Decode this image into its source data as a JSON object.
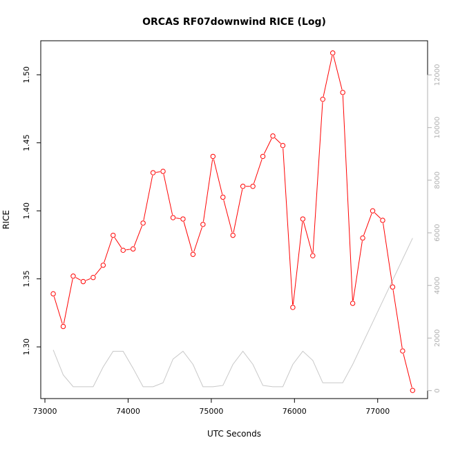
{
  "chart_data": {
    "type": "line",
    "title": "ORCAS RF07downwind RICE (Log)",
    "xlabel": "UTC Seconds",
    "ylabel": "RICE",
    "xlim": [
      72950,
      77600
    ],
    "ylim": [
      1.262,
      1.525
    ],
    "y2lim": [
      -300,
      13300
    ],
    "x_ticks": [
      73000,
      74000,
      75000,
      76000,
      77000
    ],
    "y_ticks": [
      1.3,
      1.35,
      1.4,
      1.45,
      1.5
    ],
    "y_tick_labels": [
      "1.30",
      "1.35",
      "1.40",
      "1.45",
      "1.50"
    ],
    "y2_ticks": [
      0,
      2000,
      4000,
      6000,
      8000,
      10000,
      12000
    ],
    "grid": false,
    "series": [
      {
        "color": "#ff0000",
        "marker": "open-circle",
        "axis": "left",
        "x": [
          73100,
          73220,
          73340,
          73460,
          73580,
          73700,
          73820,
          73940,
          74060,
          74180,
          74300,
          74420,
          74540,
          74660,
          74780,
          74900,
          75020,
          75140,
          75260,
          75380,
          75500,
          75620,
          75740,
          75860,
          75980,
          76100,
          76220,
          76340,
          76460,
          76580,
          76700,
          76820,
          76940,
          77060,
          77180,
          77300,
          77420
        ],
        "y": [
          1.339,
          1.315,
          1.352,
          1.348,
          1.351,
          1.36,
          1.382,
          1.371,
          1.372,
          1.391,
          1.428,
          1.429,
          1.395,
          1.394,
          1.368,
          1.39,
          1.44,
          1.41,
          1.382,
          1.418,
          1.418,
          1.44,
          1.455,
          1.448,
          1.329,
          1.394,
          1.367,
          1.482,
          1.516,
          1.487,
          1.332,
          1.38,
          1.4,
          1.393,
          1.344,
          1.297,
          1.268
        ]
      },
      {
        "color": "#c8c8c8",
        "marker": "none",
        "axis": "right",
        "x": [
          73100,
          73220,
          73340,
          73460,
          73580,
          73700,
          73820,
          73940,
          74060,
          74180,
          74300,
          74420,
          74540,
          74660,
          74780,
          74900,
          75020,
          75140,
          75260,
          75380,
          75500,
          75620,
          75740,
          75860,
          75980,
          76100,
          76220,
          76340,
          76460,
          76580,
          76700,
          76820,
          76940,
          77060,
          77180,
          77300,
          77420
        ],
        "y": [
          1550,
          600,
          150,
          150,
          150,
          900,
          1500,
          1500,
          850,
          150,
          150,
          300,
          1200,
          1500,
          1000,
          150,
          150,
          200,
          1000,
          1500,
          1000,
          200,
          150,
          150,
          1000,
          1500,
          1150,
          300,
          300,
          300,
          1000,
          1800,
          2600,
          3400,
          4200,
          5000,
          5800
        ]
      }
    ]
  }
}
